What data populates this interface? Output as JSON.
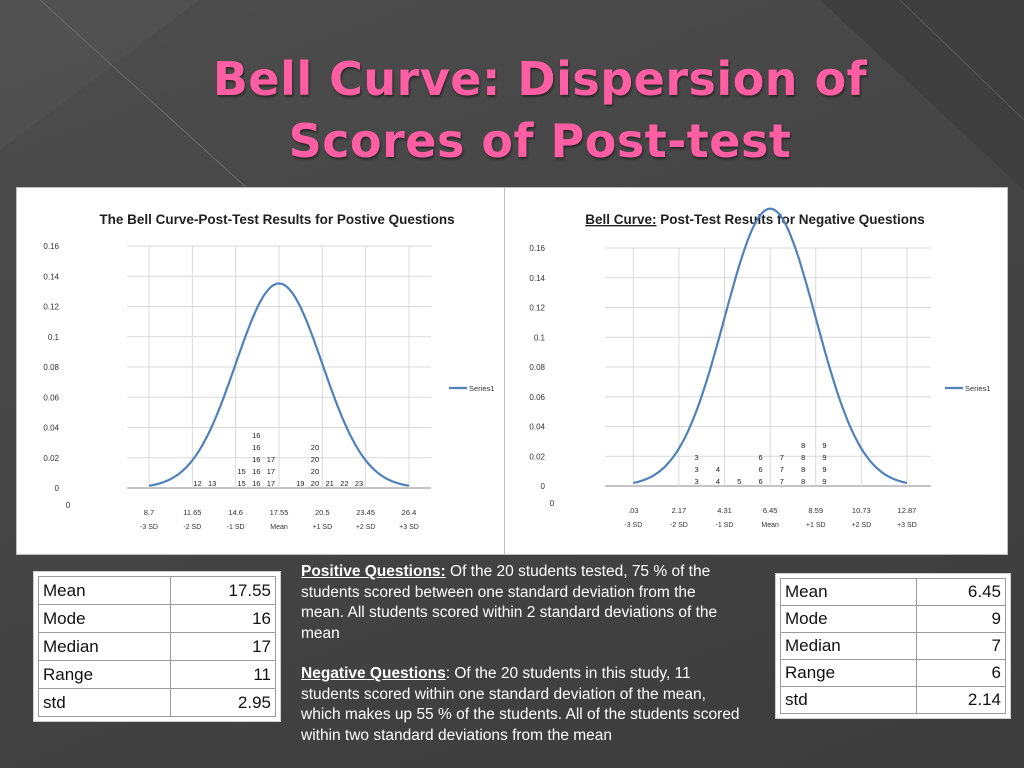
{
  "slide": {
    "title": "Bell Curve: Dispersion of Scores of Post-test"
  },
  "colors": {
    "title": "#ff5fa2",
    "curve": "#4f81bd",
    "grid": "#d9d9d9"
  },
  "chart_data": [
    {
      "type": "line",
      "title": "The Bell Curve-Post-Test Results for Postive Questions",
      "title_prefix": "",
      "title_rest": "The Bell Curve-Post-Test Results for Postive Questions",
      "series": [
        {
          "name": "Series1",
          "mean": 17.55,
          "sd": 2.95
        }
      ],
      "x_ticks": [
        {
          "value": 8.7,
          "label": "8.7",
          "sd_label": "-3 SD"
        },
        {
          "value": 11.65,
          "label": "11.65",
          "sd_label": "-2 SD"
        },
        {
          "value": 14.6,
          "label": "14.6",
          "sd_label": "-1 SD"
        },
        {
          "value": 17.55,
          "label": "17.55",
          "sd_label": "Mean"
        },
        {
          "value": 20.5,
          "label": "20.5",
          "sd_label": "+1 SD"
        },
        {
          "value": 23.45,
          "label": "23.45",
          "sd_label": "+2 SD"
        },
        {
          "value": 26.4,
          "label": "26.4",
          "sd_label": "+3 SD"
        }
      ],
      "xlim": [
        7.2,
        27.9
      ],
      "y_ticks": [
        "0.16",
        "0.14",
        "0.12",
        "0.1",
        "0.08",
        "0.06",
        "0.04",
        "0.02",
        "0"
      ],
      "ylim": [
        0,
        0.16
      ],
      "extra_zero_label": "0",
      "grid": true,
      "legend": "right",
      "score_stacks": [
        {
          "x": 12,
          "labels": [
            "12"
          ]
        },
        {
          "x": 13,
          "labels": [
            "13"
          ]
        },
        {
          "x": 15,
          "labels": [
            "15",
            "15"
          ]
        },
        {
          "x": 16,
          "labels": [
            "16",
            "16",
            "16",
            "16",
            "16"
          ]
        },
        {
          "x": 17,
          "labels": [
            "17",
            "17",
            "17"
          ]
        },
        {
          "x": 19,
          "labels": [
            "19"
          ]
        },
        {
          "x": 20,
          "labels": [
            "20",
            "20",
            "20",
            "20"
          ]
        },
        {
          "x": 21,
          "labels": [
            "21"
          ]
        },
        {
          "x": 22,
          "labels": [
            "22"
          ]
        },
        {
          "x": 23,
          "labels": [
            "23"
          ]
        }
      ]
    },
    {
      "type": "line",
      "title": "Bell Curve: Post-Test Results for Negative Questions",
      "title_prefix": "Bell Curve:",
      "title_rest": " Post-Test Results for Negative Questions",
      "series": [
        {
          "name": "Series1",
          "mean": 6.45,
          "sd": 2.14
        }
      ],
      "x_ticks": [
        {
          "value": 0.03,
          "label": ".03",
          "sd_label": "-3 SD"
        },
        {
          "value": 2.17,
          "label": "2.17",
          "sd_label": "-2 SD"
        },
        {
          "value": 4.31,
          "label": "4.31",
          "sd_label": "-1 SD"
        },
        {
          "value": 6.45,
          "label": "6.45",
          "sd_label": "Mean"
        },
        {
          "value": 8.59,
          "label": "8.59",
          "sd_label": "+1 SD"
        },
        {
          "value": 10.73,
          "label": "10.73",
          "sd_label": "+2 SD"
        },
        {
          "value": 12.87,
          "label": "12.87",
          "sd_label": "+3 SD"
        }
      ],
      "xlim": [
        -1.3,
        14.0
      ],
      "y_ticks": [
        "0.16",
        "0.14",
        "0.12",
        "0.1",
        "0.08",
        "0.06",
        "0.04",
        "0.02",
        "0"
      ],
      "ylim": [
        0,
        0.16
      ],
      "extra_zero_label": "0",
      "grid": true,
      "legend": "right",
      "score_stacks": [
        {
          "x": 3,
          "labels": [
            "3",
            "3",
            "3"
          ]
        },
        {
          "x": 4,
          "labels": [
            "4",
            "4"
          ]
        },
        {
          "x": 5,
          "labels": [
            "5"
          ]
        },
        {
          "x": 6,
          "labels": [
            "6",
            "6",
            "6"
          ]
        },
        {
          "x": 7,
          "labels": [
            "7",
            "7",
            "7"
          ]
        },
        {
          "x": 8,
          "labels": [
            "8",
            "8",
            "8",
            "8"
          ]
        },
        {
          "x": 9,
          "labels": [
            "9",
            "9",
            "9",
            "9"
          ]
        }
      ]
    }
  ],
  "stats_left": [
    {
      "label": "Mean",
      "value": "17.55"
    },
    {
      "label": "Mode",
      "value": "16"
    },
    {
      "label": "Median",
      "value": "17"
    },
    {
      "label": "Range",
      "value": "11"
    },
    {
      "label": "std",
      "value": "2.95"
    }
  ],
  "stats_right": [
    {
      "label": "Mean",
      "value": "6.45"
    },
    {
      "label": "Mode",
      "value": "9"
    },
    {
      "label": "Median",
      "value": "7"
    },
    {
      "label": "Range",
      "value": "6"
    },
    {
      "label": "std",
      "value": "2.14"
    }
  ],
  "text": {
    "positive_heading": "Positive Questions:",
    "positive_body": " Of the 20 students tested, 75 % of the students scored between one standard deviation from the mean.  All students scored within 2 standard deviations of the mean",
    "negative_heading": "Negative Questions",
    "negative_body": ": Of the 20 students in this study, 11 students scored within one standard deviation of the mean, which makes up 55 % of the students. All of the students scored within two standard deviations from the mean"
  }
}
